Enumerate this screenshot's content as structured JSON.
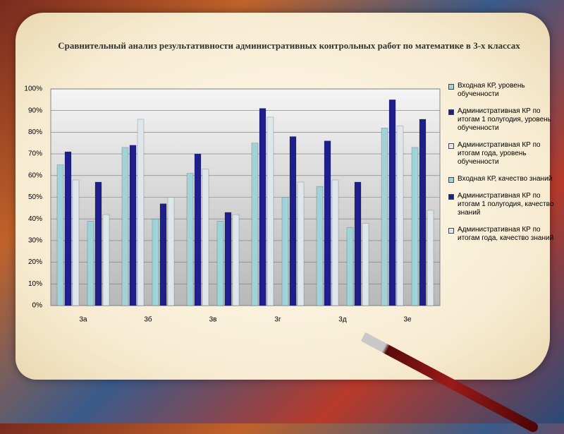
{
  "chart_data": {
    "type": "bar",
    "title": "Сравнительный анализ результативности административных контрольных работ по математике в 3-х классах",
    "categories": [
      "3а",
      "3б",
      "3в",
      "3г",
      "3д",
      "3е"
    ],
    "series": [
      {
        "name": "Входная КР, уровень обученности",
        "color": "#9fd3d8",
        "values": [
          65,
          73,
          61,
          75,
          55,
          82
        ]
      },
      {
        "name": "Административная КР по итогам 1 полугодия, уровень обученности",
        "color": "#1f1f8c",
        "values": [
          71,
          74,
          70,
          91,
          76,
          95
        ]
      },
      {
        "name": "Административная КР по итогам года, уровень обученности",
        "color": "#dde6ea",
        "values": [
          58,
          86,
          63,
          87,
          58,
          83
        ]
      },
      {
        "name": "Входная КР, качество знаний",
        "color": "#9fd3d8",
        "values": [
          39,
          40,
          39,
          50,
          36,
          73
        ]
      },
      {
        "name": "Административная КР по итогам 1 полугодия, качество знаний",
        "color": "#1f1f8c",
        "values": [
          57,
          47,
          43,
          78,
          57,
          86
        ]
      },
      {
        "name": "Административная КР по итогам года, качество знаний",
        "color": "#dde6ea",
        "values": [
          42,
          50,
          42,
          57,
          38,
          44
        ]
      }
    ],
    "ylim": [
      0,
      100
    ],
    "yticks": [
      {
        "value": 0,
        "label": "0%"
      },
      {
        "value": 10,
        "label": "10%"
      },
      {
        "value": 20,
        "label": "20%"
      },
      {
        "value": 30,
        "label": "30%"
      },
      {
        "value": 40,
        "label": "40%"
      },
      {
        "value": 50,
        "label": "50%"
      },
      {
        "value": 60,
        "label": "60%"
      },
      {
        "value": 70,
        "label": "70%"
      },
      {
        "value": 80,
        "label": "80%"
      },
      {
        "value": 90,
        "label": "90%"
      },
      {
        "value": 100,
        "label": "100%"
      }
    ],
    "grid": true
  }
}
